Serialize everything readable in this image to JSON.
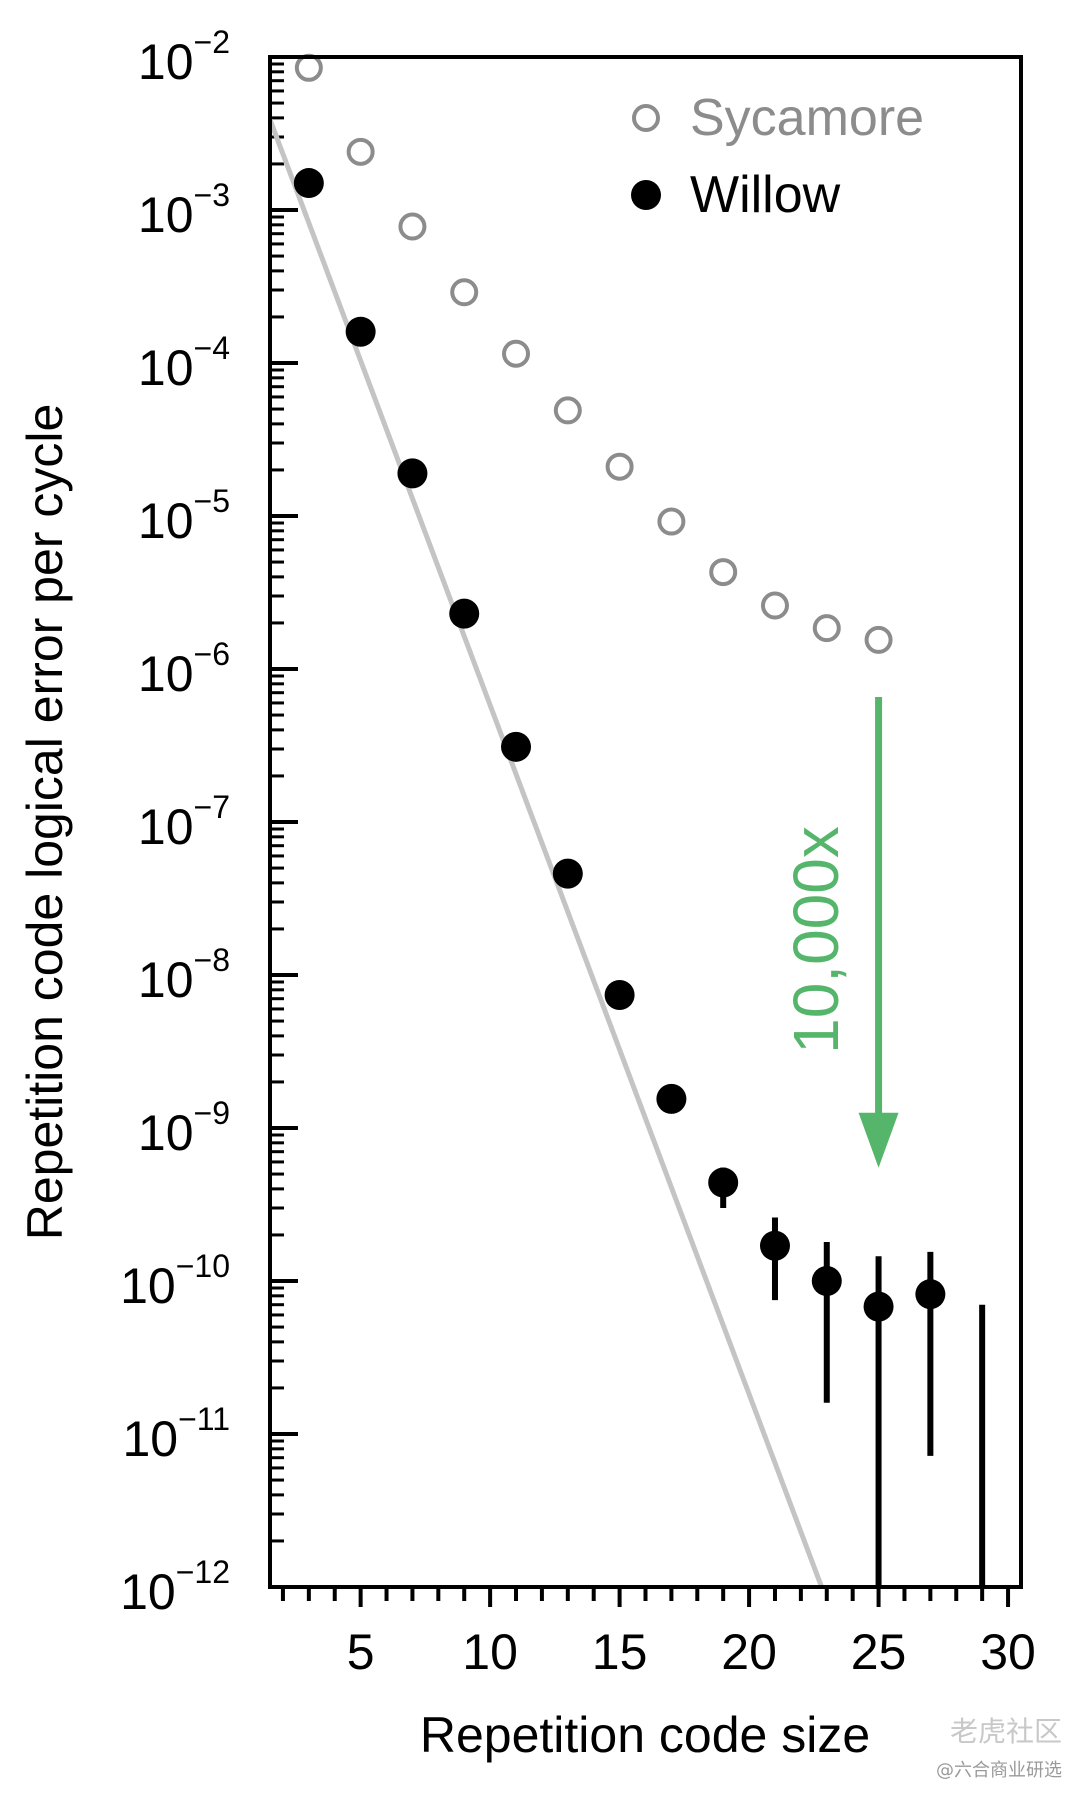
{
  "chart_data": {
    "type": "scatter",
    "title": "",
    "xlabel": "Repetition code size",
    "ylabel": "Repetition code logical error per cycle",
    "xlim": [
      1.5,
      30.5
    ],
    "ylim": [
      -12,
      -2
    ],
    "yscale": "log",
    "x_ticks": [
      5,
      10,
      15,
      20,
      25,
      30
    ],
    "y_ticks": [
      {
        "base": "10",
        "exp": "−2"
      },
      {
        "base": "10",
        "exp": "−3"
      },
      {
        "base": "10",
        "exp": "−4"
      },
      {
        "base": "10",
        "exp": "−5"
      },
      {
        "base": "10",
        "exp": "−6"
      },
      {
        "base": "10",
        "exp": "−7"
      },
      {
        "base": "10",
        "exp": "−8"
      },
      {
        "base": "10",
        "exp": "−9"
      },
      {
        "base": "10",
        "exp": "−10"
      },
      {
        "base": "10",
        "exp": "−11"
      },
      {
        "base": "10",
        "exp": "−12"
      }
    ],
    "legend_position": "top-right",
    "series": [
      {
        "name": "Sycamore",
        "marker": "open-circle",
        "color": "#8c8c8c",
        "x": [
          3,
          5,
          7,
          9,
          11,
          13,
          15,
          17,
          19,
          21,
          23,
          25
        ],
        "y": [
          0.0085,
          0.0024,
          0.00078,
          0.00029,
          0.000115,
          4.9e-05,
          2.1e-05,
          9.2e-06,
          4.3e-06,
          2.6e-06,
          1.85e-06,
          1.55e-06
        ]
      },
      {
        "name": "Willow",
        "marker": "filled-circle",
        "color": "#000000",
        "x": [
          3,
          5,
          7,
          9,
          11,
          13,
          15,
          17,
          19,
          21,
          23,
          25,
          27
        ],
        "y": [
          0.0015,
          0.00016,
          1.9e-05,
          2.3e-06,
          3.1e-07,
          4.6e-08,
          7.4e-09,
          1.55e-09,
          4.4e-10,
          1.7e-10,
          1e-10,
          6.8e-11,
          8.2e-11
        ],
        "y_low": [
          null,
          null,
          null,
          null,
          null,
          null,
          null,
          null,
          3e-10,
          7.5e-11,
          1.6e-11,
          1e-12,
          7.2e-12
        ],
        "y_high": [
          null,
          null,
          null,
          null,
          null,
          null,
          null,
          null,
          5.5e-10,
          2.6e-10,
          1.8e-10,
          1.45e-10,
          1.55e-10
        ],
        "upper_limit_bars": [
          {
            "x": 29,
            "y_high": 7e-11
          }
        ]
      }
    ],
    "fit_line": {
      "color": "#c4c4c4",
      "x": [
        1.5,
        22.8
      ],
      "y": [
        0.0039,
        1e-12
      ]
    },
    "annotation": {
      "text": "10,000x",
      "color": "#55b56a",
      "x": 25,
      "y_from": 1.5e-06,
      "y_to": 3.5e-10
    }
  },
  "watermark": {
    "line1": "老虎社区",
    "line2": "@六合商业研选"
  }
}
